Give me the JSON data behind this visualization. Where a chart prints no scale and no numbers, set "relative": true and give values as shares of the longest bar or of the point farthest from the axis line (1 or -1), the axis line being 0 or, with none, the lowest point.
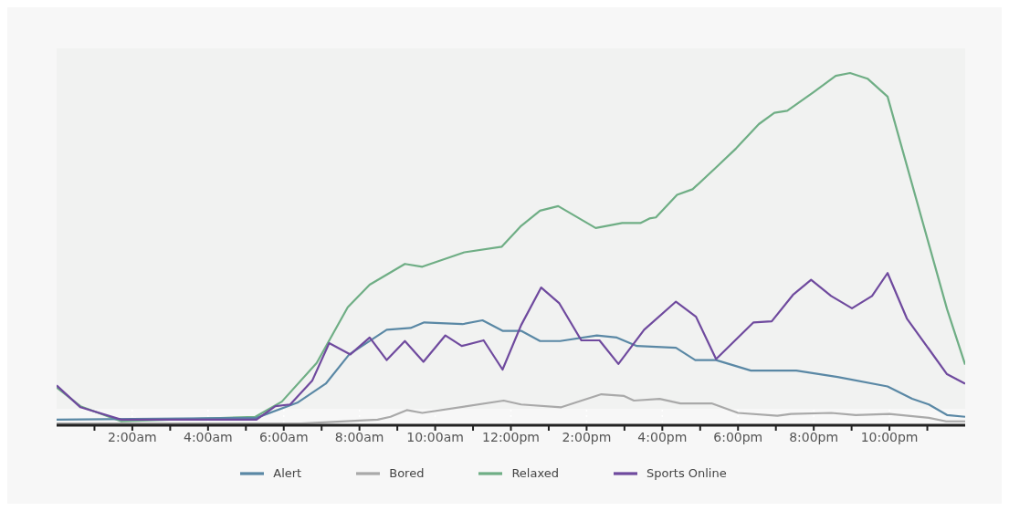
{
  "chart_data": {
    "type": "line",
    "relative": true,
    "xlim": [
      0,
      24
    ],
    "xticks": [
      {
        "value": 1,
        "label": null
      },
      {
        "value": 2,
        "label": "2:00am"
      },
      {
        "value": 3,
        "label": null
      },
      {
        "value": 4,
        "label": "4:00am"
      },
      {
        "value": 5,
        "label": null
      },
      {
        "value": 6,
        "label": "6:00am"
      },
      {
        "value": 7,
        "label": null
      },
      {
        "value": 8,
        "label": "8:00am"
      },
      {
        "value": 9,
        "label": null
      },
      {
        "value": 10,
        "label": "10:00am"
      },
      {
        "value": 11,
        "label": null
      },
      {
        "value": 12,
        "label": "12:00pm"
      },
      {
        "value": 13,
        "label": null
      },
      {
        "value": 14,
        "label": "2:00pm"
      },
      {
        "value": 15,
        "label": null
      },
      {
        "value": 16,
        "label": "4:00pm"
      },
      {
        "value": 17,
        "label": null
      },
      {
        "value": 18,
        "label": "6:00pm"
      },
      {
        "value": 19,
        "label": null
      },
      {
        "value": 20,
        "label": "8:00pm"
      },
      {
        "value": 21,
        "label": null
      },
      {
        "value": 22,
        "label": "10:00pm"
      },
      {
        "value": 23,
        "label": null
      }
    ],
    "grid": "x",
    "legend": "bottom",
    "marker": "none",
    "line_style": "solid",
    "series": [
      {
        "name": "Bored",
        "color": "#a9a9a9",
        "x": [
          0,
          6.46,
          8.48,
          8.82,
          9.25,
          9.66,
          11.81,
          12.27,
          13.33,
          14.39,
          14.99,
          15.25,
          15.93,
          16.48,
          17.3,
          18.0,
          19.04,
          19.4,
          20.46,
          21.11,
          22,
          23.04,
          23.5,
          24
        ],
        "values": [
          0.005,
          0.005,
          0.016,
          0.024,
          0.043,
          0.035,
          0.07,
          0.059,
          0.051,
          0.088,
          0.083,
          0.07,
          0.075,
          0.062,
          0.062,
          0.035,
          0.027,
          0.032,
          0.035,
          0.029,
          0.032,
          0.021,
          0.011,
          0.011
        ]
      },
      {
        "name": "Relaxed",
        "color": "#6fae85",
        "x": [
          0,
          0.63,
          1.71,
          5.25,
          5.95,
          6.87,
          7.69,
          8.27,
          9.2,
          9.66,
          10.77,
          11.76,
          12.27,
          12.77,
          13.25,
          14.24,
          14.94,
          15.42,
          15.66,
          15.83,
          16.39,
          16.8,
          17.42,
          17.95,
          18.55,
          18.96,
          19.3,
          20.0,
          20.58,
          20.96,
          21.42,
          21.95,
          23.52,
          24
        ],
        "values": [
          0.107,
          0.054,
          0.011,
          0.024,
          0.067,
          0.177,
          0.335,
          0.399,
          0.458,
          0.45,
          0.491,
          0.507,
          0.566,
          0.609,
          0.622,
          0.56,
          0.574,
          0.574,
          0.587,
          0.59,
          0.654,
          0.67,
          0.732,
          0.786,
          0.855,
          0.887,
          0.893,
          0.946,
          0.992,
          1,
          0.984,
          0.933,
          0.33,
          0.172
        ]
      },
      {
        "name": "Alert",
        "color": "#5a88a5",
        "x": [
          0,
          5.28,
          6.36,
          7.11,
          7.73,
          8.72,
          9.35,
          9.71,
          10.72,
          11.25,
          11.78,
          12.27,
          12.77,
          13.3,
          14.27,
          14.8,
          15.33,
          16.36,
          16.87,
          17.42,
          18.34,
          19.54,
          20.63,
          21.95,
          22.6,
          23.04,
          23.52,
          24
        ],
        "values": [
          0.016,
          0.021,
          0.064,
          0.118,
          0.201,
          0.271,
          0.276,
          0.292,
          0.287,
          0.298,
          0.268,
          0.268,
          0.239,
          0.239,
          0.255,
          0.249,
          0.225,
          0.22,
          0.185,
          0.185,
          0.155,
          0.155,
          0.137,
          0.11,
          0.075,
          0.059,
          0.029,
          0.024
        ]
      },
      {
        "name": "Sports Online",
        "color": "#6f4a9e",
        "x": [
          0,
          0.63,
          1.71,
          5.28,
          5.78,
          6.17,
          6.75,
          7.2,
          7.76,
          8.27,
          8.72,
          9.2,
          9.69,
          10.27,
          10.7,
          11.28,
          11.78,
          12.27,
          12.8,
          13.28,
          13.86,
          14.34,
          14.84,
          15.52,
          16.36,
          16.89,
          17.42,
          18.41,
          18.89,
          19.45,
          19.93,
          20.46,
          21.01,
          21.54,
          21.95,
          22.46,
          23.52,
          24
        ],
        "values": [
          0.113,
          0.051,
          0.016,
          0.016,
          0.054,
          0.059,
          0.126,
          0.233,
          0.201,
          0.249,
          0.185,
          0.239,
          0.18,
          0.255,
          0.225,
          0.241,
          0.158,
          0.284,
          0.391,
          0.346,
          0.241,
          0.241,
          0.174,
          0.271,
          0.351,
          0.308,
          0.188,
          0.292,
          0.295,
          0.37,
          0.413,
          0.367,
          0.332,
          0.367,
          0.432,
          0.303,
          0.145,
          0.118
        ]
      }
    ]
  }
}
